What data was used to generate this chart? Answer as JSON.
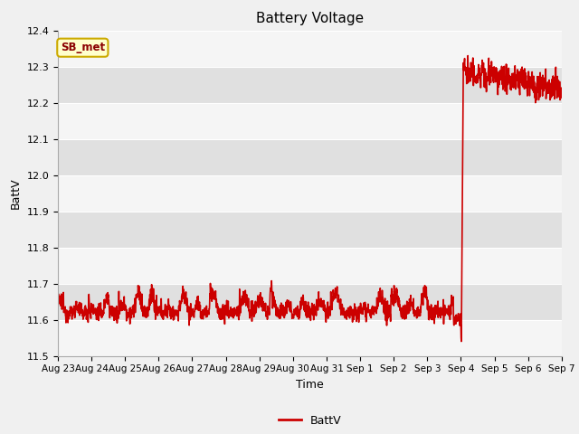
{
  "title": "Battery Voltage",
  "xlabel": "Time",
  "ylabel": "BattV",
  "ylim": [
    11.5,
    12.4
  ],
  "yticks": [
    11.5,
    11.6,
    11.7,
    11.8,
    11.9,
    12.0,
    12.1,
    12.2,
    12.3,
    12.4
  ],
  "line_color": "#cc0000",
  "line_width": 1.2,
  "fig_bg_color": "#f0f0f0",
  "plot_bg_color": "#e8e8e8",
  "band_color_light": "#f5f5f5",
  "band_color_dark": "#e0e0e0",
  "legend_label": "BattV",
  "annotation_text": "SB_met",
  "annotation_bg": "#ffffcc",
  "annotation_border": "#ccaa00",
  "x_tick_labels": [
    "Aug 23",
    "Aug 24",
    "Aug 25",
    "Aug 26",
    "Aug 27",
    "Aug 28",
    "Aug 29",
    "Aug 30",
    "Aug 31",
    "Sep 1",
    "Sep 2",
    "Sep 3",
    "Sep 4",
    "Sep 5",
    "Sep 6",
    "Sep 7"
  ]
}
